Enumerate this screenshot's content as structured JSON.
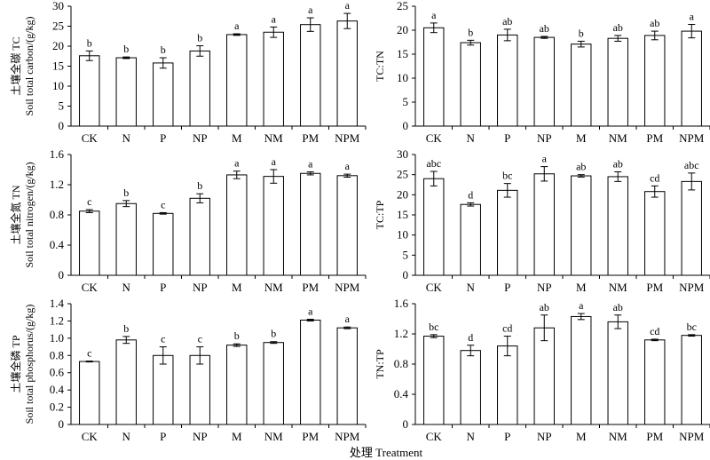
{
  "figure": {
    "x_title": "处理 Treatment"
  },
  "chart_data": [
    {
      "id": "tc",
      "type": "bar",
      "ylabel": [
        "土壤全碳 TC",
        "Soil total carbon/(g/kg)"
      ],
      "ylim": [
        0,
        30
      ],
      "yticks": [
        "0",
        "5",
        "10",
        "15",
        "20",
        "25",
        "30"
      ],
      "categories": [
        "CK",
        "N",
        "P",
        "NP",
        "M",
        "NM",
        "PM",
        "NPM"
      ],
      "values": [
        17.6,
        17.1,
        15.8,
        18.8,
        22.9,
        23.5,
        25.4,
        26.3
      ],
      "errors": [
        1.2,
        0.2,
        1.3,
        1.3,
        0.2,
        1.3,
        1.7,
        1.9
      ],
      "labels": [
        "b",
        "b",
        "b",
        "b",
        "a",
        "a",
        "a",
        "a"
      ]
    },
    {
      "id": "tc_tn",
      "type": "bar",
      "ylabel": [
        "TC:TN"
      ],
      "ylim": [
        0,
        25
      ],
      "yticks": [
        "0",
        "5",
        "10",
        "15",
        "20",
        "25"
      ],
      "categories": [
        "CK",
        "N",
        "P",
        "NP",
        "M",
        "NM",
        "PM",
        "NPM"
      ],
      "values": [
        20.5,
        17.4,
        19.0,
        18.5,
        17.1,
        18.3,
        18.9,
        19.8
      ],
      "errors": [
        1.0,
        0.5,
        1.2,
        0.2,
        0.6,
        0.6,
        0.9,
        1.4
      ],
      "labels": [
        "a",
        "b",
        "ab",
        "ab",
        "b",
        "ab",
        "ab",
        "a"
      ]
    },
    {
      "id": "tn",
      "type": "bar",
      "ylabel": [
        "土壤全氮 TN",
        "Soil total nitrogen/(g/kg)"
      ],
      "ylim": [
        0,
        1.6
      ],
      "yticks": [
        "0",
        "0.4",
        "0.8",
        "1.2",
        "1.6"
      ],
      "categories": [
        "CK",
        "N",
        "P",
        "NP",
        "M",
        "NM",
        "PM",
        "NPM"
      ],
      "values": [
        0.85,
        0.95,
        0.82,
        1.02,
        1.33,
        1.31,
        1.35,
        1.32
      ],
      "errors": [
        0.02,
        0.04,
        0.01,
        0.06,
        0.05,
        0.09,
        0.02,
        0.02
      ],
      "labels": [
        "c",
        "b",
        "c",
        "b",
        "a",
        "a",
        "a",
        "a"
      ]
    },
    {
      "id": "tc_tp",
      "type": "bar",
      "ylabel": [
        "TC:TP"
      ],
      "ylim": [
        0,
        30
      ],
      "yticks": [
        "0",
        "5",
        "10",
        "15",
        "20",
        "25",
        "30"
      ],
      "categories": [
        "CK",
        "N",
        "P",
        "NP",
        "M",
        "NM",
        "PM",
        "NPM"
      ],
      "values": [
        24.0,
        17.6,
        21.1,
        25.2,
        24.7,
        24.5,
        20.8,
        23.3
      ],
      "errors": [
        1.8,
        0.4,
        1.7,
        1.8,
        0.3,
        1.2,
        1.4,
        2.1
      ],
      "labels": [
        "abc",
        "d",
        "bc",
        "a",
        "ab",
        "ab",
        "cd",
        "abc"
      ]
    },
    {
      "id": "tp",
      "type": "bar",
      "ylabel": [
        "土壤全磷 TP",
        "Soil total phosphorus/(g/kg)"
      ],
      "ylim": [
        0,
        1.4
      ],
      "yticks": [
        "0",
        "0.2",
        "0.4",
        "0.6",
        "0.8",
        "1.0",
        "1.2",
        "1.4"
      ],
      "categories": [
        "CK",
        "N",
        "P",
        "NP",
        "M",
        "NM",
        "PM",
        "NPM"
      ],
      "values": [
        0.73,
        0.98,
        0.8,
        0.8,
        0.92,
        0.95,
        1.21,
        1.12
      ],
      "errors": [
        0.005,
        0.04,
        0.1,
        0.1,
        0.015,
        0.01,
        0.01,
        0.01
      ],
      "labels": [
        "c",
        "b",
        "c",
        "c",
        "b",
        "b",
        "a",
        "a"
      ]
    },
    {
      "id": "tn_tp",
      "type": "bar",
      "ylabel": [
        "TN:TP"
      ],
      "ylim": [
        0,
        1.6
      ],
      "yticks": [
        "0",
        "0.4",
        "0.8",
        "1.2",
        "1.6"
      ],
      "categories": [
        "CK",
        "N",
        "P",
        "NP",
        "M",
        "NM",
        "PM",
        "NPM"
      ],
      "values": [
        1.17,
        0.98,
        1.04,
        1.28,
        1.43,
        1.36,
        1.12,
        1.18
      ],
      "errors": [
        0.02,
        0.07,
        0.13,
        0.17,
        0.04,
        0.09,
        0.01,
        0.01
      ],
      "labels": [
        "bc",
        "d",
        "cd",
        "ab",
        "a",
        "ab",
        "cd",
        "bc"
      ]
    }
  ]
}
